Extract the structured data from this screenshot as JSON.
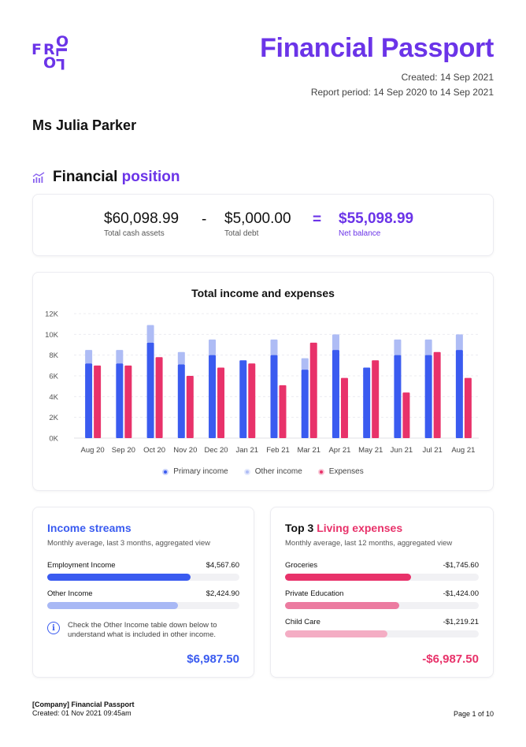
{
  "brand": {
    "logo_letters": [
      "F",
      "R",
      "O",
      "L",
      "O"
    ],
    "primary_color": "#6b34e8"
  },
  "header": {
    "title": "Financial Passport",
    "created": "Created: 14 Sep 2021",
    "period": "Report period: 14 Sep 2020 to 14 Sep 2021"
  },
  "client": {
    "name": "Ms Julia Parker"
  },
  "position": {
    "heading_prefix": "Financial",
    "heading_accent": "position",
    "icon": "chart-bars-icon",
    "cash": {
      "amount": "$60,098.99",
      "label": "Total cash assets"
    },
    "minus": "-",
    "debt": {
      "amount": "$5,000.00",
      "label": "Total debt"
    },
    "equals": "=",
    "net": {
      "amount": "$55,098.99",
      "label": "Net balance"
    }
  },
  "chart_data": {
    "type": "bar",
    "title": "Total income and expenses",
    "categories": [
      "Aug 20",
      "Sep 20",
      "Oct 20",
      "Nov 20",
      "Dec 20",
      "Jan 21",
      "Feb 21",
      "Mar 21",
      "Apr 21",
      "May 21",
      "Jun 21",
      "Jul 21",
      "Aug 21"
    ],
    "y_ticks": [
      "0K",
      "2K",
      "4K",
      "6K",
      "8K",
      "10K",
      "12K"
    ],
    "ylim": [
      0,
      12000
    ],
    "stacked_income": true,
    "series": [
      {
        "name": "Primary income",
        "color": "#3a5bf0",
        "values": [
          7200,
          7200,
          9200,
          7100,
          8000,
          7500,
          8000,
          6600,
          8500,
          6800,
          8000,
          8000,
          8500
        ]
      },
      {
        "name": "Other income",
        "color": "#aebcf5",
        "values": [
          1300,
          1300,
          1700,
          1200,
          1500,
          0,
          1500,
          1100,
          1500,
          0,
          1500,
          1500,
          1500
        ]
      },
      {
        "name": "Expenses",
        "color": "#e8326a",
        "values": [
          7000,
          7000,
          7800,
          6000,
          6800,
          7200,
          5100,
          9200,
          5800,
          7500,
          4400,
          8300,
          5800
        ]
      }
    ],
    "grid": true,
    "legend_position": "bottom"
  },
  "income": {
    "title": "Income streams",
    "subtitle": "Monthly average, last 3 months, aggregated view",
    "items": [
      {
        "label": "Employment Income",
        "value": "$4,567.60",
        "fraction": 0.745,
        "color": "#3a5bf0"
      },
      {
        "label": "Other Income",
        "value": "$2,424.90",
        "fraction": 0.68,
        "color": "#a8b8f5"
      }
    ],
    "info": "Check the Other Income table down below to understand what is included in other income.",
    "total": "$6,987.50",
    "accent": "#3a5bf0"
  },
  "expenses": {
    "title_prefix": "Top 3",
    "title_accent": "Living expenses",
    "subtitle": "Monthly average, last 12 months, aggregated view",
    "items": [
      {
        "label": "Groceries",
        "value": "-$1,745.60",
        "fraction": 0.65,
        "color": "#e8326a"
      },
      {
        "label": "Private Education",
        "value": "-$1,424.00",
        "fraction": 0.59,
        "color": "#ec7ba0"
      },
      {
        "label": "Child Care",
        "value": "-$1,219.21",
        "fraction": 0.53,
        "color": "#f4adc4"
      }
    ],
    "total": "-$6,987.50",
    "accent": "#e8326a"
  },
  "footer": {
    "company": "[Company] Financial Passport",
    "created": "Created: 01 Nov 2021 09:45am",
    "page": "Page 1 of 10"
  }
}
